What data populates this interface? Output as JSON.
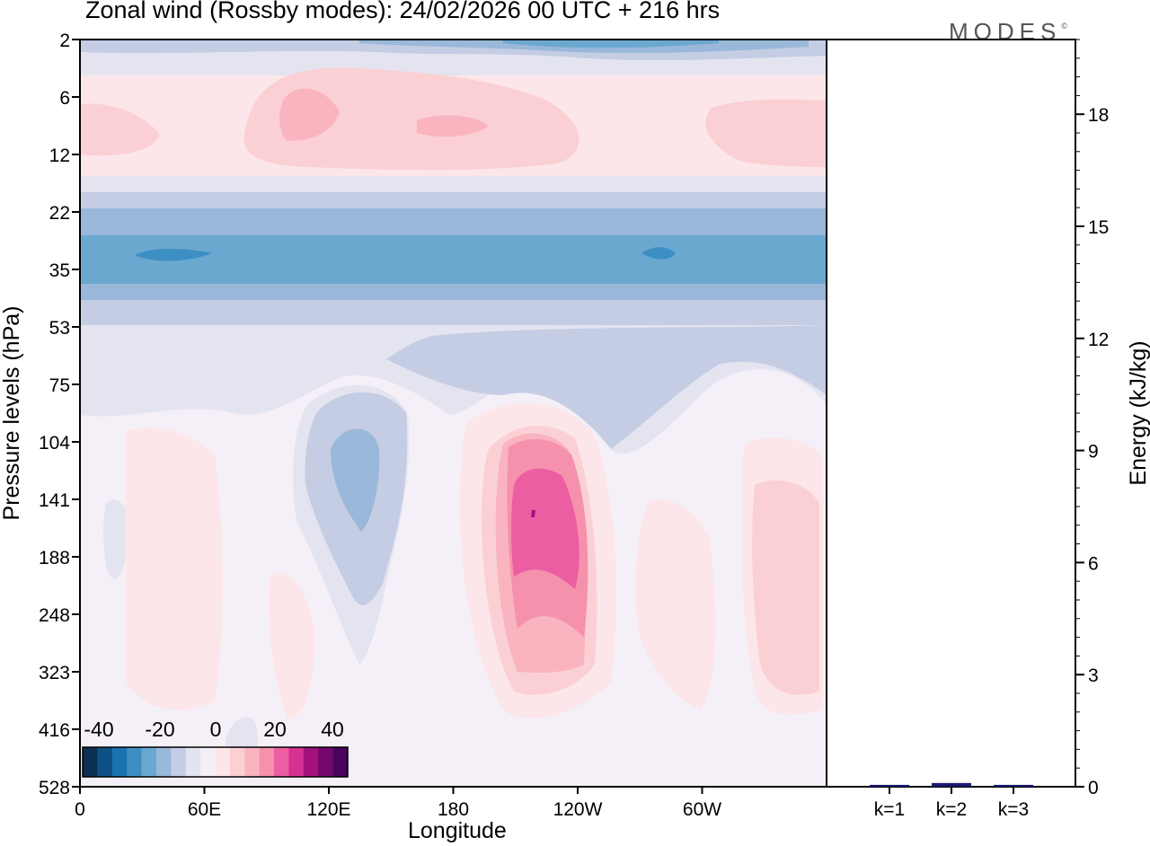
{
  "title": "Zonal wind (Rossby modes):  24/02/2026  00 UTC  + 216 hrs",
  "brand": "MODES",
  "brand_mark": "©",
  "chart_data": [
    {
      "type": "heatmap",
      "title": "Zonal wind (Rossby modes):  24/02/2026  00 UTC  + 216 hrs",
      "xlabel": "Longitude",
      "ylabel": "Pressure levels (hPa)",
      "x_ticks": [
        "0",
        "60E",
        "120E",
        "180",
        "120W",
        "60W"
      ],
      "x_tick_lon": [
        0,
        60,
        120,
        180,
        240,
        300
      ],
      "xlim": [
        0,
        360
      ],
      "y_ticks": [
        "2",
        "6",
        "12",
        "22",
        "35",
        "53",
        "75",
        "104",
        "141",
        "188",
        "248",
        "323",
        "416",
        "528"
      ],
      "colorbar": {
        "labels": [
          "-40",
          "-20",
          "0",
          "20",
          "40"
        ],
        "colors": [
          "#0d2f52",
          "#0f5185",
          "#1a73b0",
          "#3d8fc3",
          "#6ba8d0",
          "#9ab8d9",
          "#c4cde4",
          "#e4e4f0",
          "#f5f0f8",
          "#fde6e9",
          "#fbd0d4",
          "#f9b4bf",
          "#f591ad",
          "#ec5ea1",
          "#d63191",
          "#a3127b",
          "#73086c",
          "#48045b"
        ]
      },
      "zones": [
        {
          "level": "2",
          "mean_wind": -15
        },
        {
          "level": "6",
          "mean_wind": 10
        },
        {
          "level": "12",
          "mean_wind": 5
        },
        {
          "level": "22",
          "mean_wind": -10
        },
        {
          "level": "35",
          "mean_wind": -25
        },
        {
          "level": "53",
          "mean_wind": -10
        },
        {
          "level": "104",
          "mean_wind": -5
        },
        {
          "level": "141",
          "mean_wind": 25
        },
        {
          "level": "323",
          "mean_wind": 10
        }
      ]
    },
    {
      "type": "bar",
      "categories": [
        "k=1",
        "k=2",
        "k=3"
      ],
      "values": [
        0.05,
        0.1,
        0.05
      ],
      "ylabel": "Energy (kJ/kg)",
      "y_ticks": [
        "0",
        "3",
        "6",
        "9",
        "12",
        "15",
        "18"
      ],
      "y_tick_values": [
        0,
        3,
        6,
        9,
        12,
        15,
        18
      ],
      "ylim": [
        0,
        20
      ],
      "bar_color": "#1a1a6e"
    }
  ]
}
